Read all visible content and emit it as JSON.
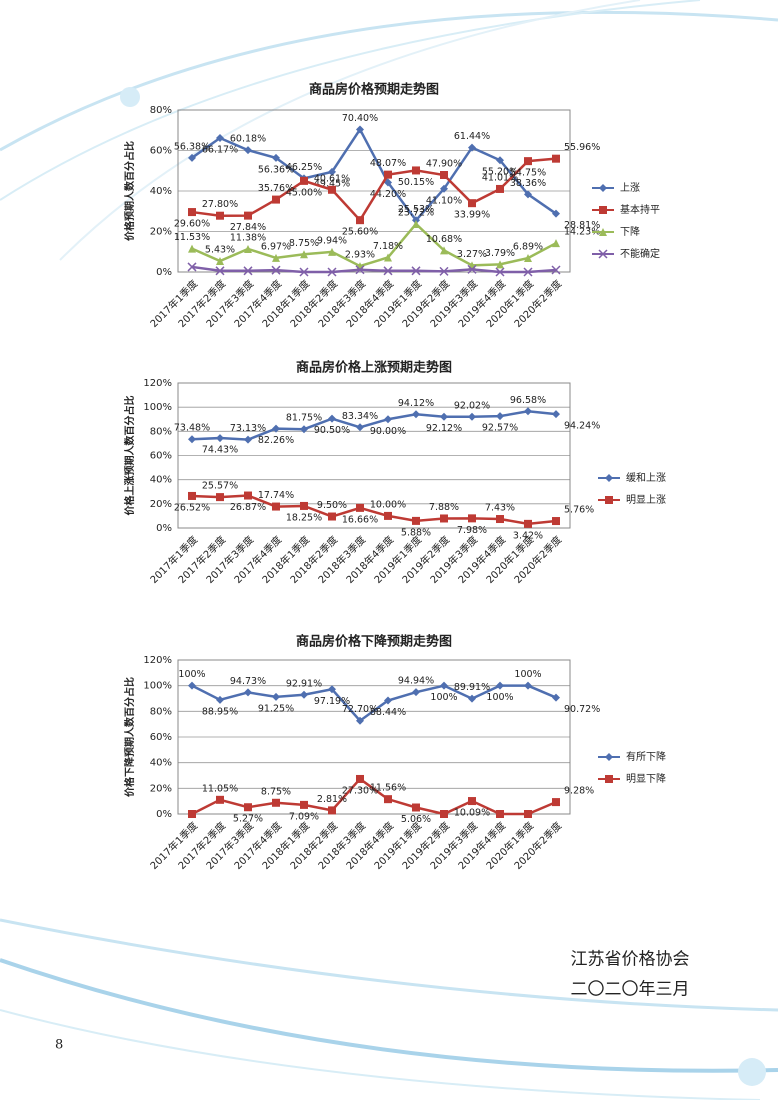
{
  "chart_data": [
    {
      "type": "line",
      "title": "商品房价格预期走势图",
      "y_label": "价格预期人数百分占比",
      "categories": [
        "2017年1季度",
        "2017年2季度",
        "2017年3季度",
        "2017年4季度",
        "2018年1季度",
        "2018年2季度",
        "2018年3季度",
        "2018年4季度",
        "2019年1季度",
        "2019年2季度",
        "2019年3季度",
        "2019年4季度",
        "2020年1季度",
        "2020年2季度"
      ],
      "ylim": [
        0,
        80
      ],
      "yticks": [
        {
          "value": 0,
          "label": "0%"
        },
        {
          "value": 20,
          "label": "20%"
        },
        {
          "value": 40,
          "label": "40%"
        },
        {
          "value": 60,
          "label": "60%"
        },
        {
          "value": 80,
          "label": "80%"
        }
      ],
      "grid": true,
      "legend": "right",
      "series": [
        {
          "name": "上涨",
          "color": "#4f6fb0",
          "marker": "diamond",
          "values": [
            56.38,
            66.17,
            60.18,
            56.36,
            46.25,
            49.45,
            70.4,
            44.2,
            25.53,
            41.1,
            61.44,
            55.2,
            38.36,
            28.81
          ],
          "value_labels": [
            "56.38%",
            "66.17%",
            "60.18%",
            "56.36%",
            "46.25%",
            "49.45%",
            "70.40%",
            "44.20%",
            "25.53%",
            "41.10%",
            "61.44%",
            "55.20%",
            "38.36%",
            "28.81%"
          ]
        },
        {
          "name": "基本持平",
          "color": "#be3a34",
          "marker": "square",
          "values": [
            29.6,
            27.8,
            27.84,
            35.76,
            45.0,
            40.61,
            25.6,
            48.07,
            50.15,
            47.9,
            33.99,
            41.01,
            54.75,
            55.96
          ],
          "value_labels": [
            "29.60%",
            "27.80%",
            "27.84%",
            "35.76%",
            "45.00%",
            "40.61%",
            "25.60%",
            "48.07%",
            "50.15%",
            "47.90%",
            "33.99%",
            "41.01%",
            "54.75%",
            "55.96%"
          ]
        },
        {
          "name": "下降",
          "color": "#9bbb59",
          "marker": "triangle",
          "values": [
            11.53,
            5.43,
            11.38,
            6.97,
            8.75,
            9.94,
            2.93,
            7.18,
            23.72,
            10.68,
            3.27,
            3.79,
            6.89,
            14.23
          ],
          "value_labels": [
            "11.53%",
            "5.43%",
            "11.38%",
            "6.97%",
            "8.75%",
            "9.94%",
            "2.93%",
            "7.18%",
            "23.72%",
            "10.68%",
            "3.27%",
            "3.79%",
            "6.89%",
            "14.23%"
          ]
        },
        {
          "name": "不能确定",
          "color": "#7f5fa8",
          "marker": "x",
          "values": [
            2.5,
            0.6,
            0.6,
            0.9,
            0,
            0,
            1.1,
            0.6,
            0.6,
            0.3,
            1.3,
            0,
            0,
            1.0
          ]
        }
      ]
    },
    {
      "type": "line",
      "title": "商品房价格上涨预期走势图",
      "y_label": "价格上涨预期人数百分占比",
      "categories": [
        "2017年1季度",
        "2017年2季度",
        "2017年3季度",
        "2017年4季度",
        "2018年1季度",
        "2018年2季度",
        "2018年3季度",
        "2018年4季度",
        "2019年1季度",
        "2019年2季度",
        "2019年3季度",
        "2019年4季度",
        "2020年1季度",
        "2020年2季度"
      ],
      "ylim": [
        0,
        120
      ],
      "yticks": [
        {
          "value": 0,
          "label": "0%"
        },
        {
          "value": 20,
          "label": "20%"
        },
        {
          "value": 40,
          "label": "40%"
        },
        {
          "value": 60,
          "label": "60%"
        },
        {
          "value": 80,
          "label": "80%"
        },
        {
          "value": 100,
          "label": "100%"
        },
        {
          "value": 120,
          "label": "120%"
        }
      ],
      "grid": true,
      "legend": "right",
      "series": [
        {
          "name": "缓和上涨",
          "color": "#4f6fb0",
          "marker": "diamond",
          "values": [
            73.48,
            74.43,
            73.13,
            82.26,
            81.75,
            90.5,
            83.34,
            90.0,
            94.12,
            92.12,
            92.02,
            92.57,
            96.58,
            94.24
          ],
          "value_labels": [
            "73.48%",
            "74.43%",
            "73.13%",
            "82.26%",
            "81.75%",
            "90.50%",
            "83.34%",
            "90.00%",
            "94.12%",
            "92.12%",
            "92.02%",
            "92.57%",
            "96.58%",
            "94.24%"
          ]
        },
        {
          "name": "明显上涨",
          "color": "#be3a34",
          "marker": "square",
          "values": [
            26.52,
            25.57,
            26.87,
            17.74,
            18.25,
            9.5,
            16.66,
            10.0,
            5.88,
            7.88,
            7.98,
            7.43,
            3.42,
            5.76
          ],
          "value_labels": [
            "26.52%",
            "25.57%",
            "26.87%",
            "17.74%",
            "18.25%",
            "9.50%",
            "16.66%",
            "10.00%",
            "5.88%",
            "7.88%",
            "7.98%",
            "7.43%",
            "3.42%",
            "5.76%"
          ]
        }
      ]
    },
    {
      "type": "line",
      "title": "商品房价格下降预期走势图",
      "y_label": "价格下降预期人数百分占比",
      "categories": [
        "2017年1季度",
        "2017年2季度",
        "2017年3季度",
        "2017年4季度",
        "2018年1季度",
        "2018年2季度",
        "2018年3季度",
        "2018年4季度",
        "2019年1季度",
        "2019年2季度",
        "2019年3季度",
        "2019年4季度",
        "2020年1季度",
        "2020年2季度"
      ],
      "ylim": [
        0,
        120
      ],
      "yticks": [
        {
          "value": 0,
          "label": "0%"
        },
        {
          "value": 20,
          "label": "20%"
        },
        {
          "value": 40,
          "label": "40%"
        },
        {
          "value": 60,
          "label": "60%"
        },
        {
          "value": 80,
          "label": "80%"
        },
        {
          "value": 100,
          "label": "100%"
        },
        {
          "value": 120,
          "label": "120%"
        }
      ],
      "grid": true,
      "legend": "right",
      "series": [
        {
          "name": "有所下降",
          "color": "#4f6fb0",
          "marker": "diamond",
          "values": [
            100,
            88.95,
            94.73,
            91.25,
            92.91,
            97.19,
            72.7,
            88.44,
            94.94,
            100,
            89.91,
            100,
            100,
            90.72
          ],
          "value_labels": [
            "100%",
            "88.95%",
            "94.73%",
            "91.25%",
            "92.91%",
            "97.19%",
            "72.70%",
            "88.44%",
            "94.94%",
            "100%",
            "89.91%",
            "100%",
            "100%",
            "90.72%"
          ]
        },
        {
          "name": "明显下降",
          "color": "#be3a34",
          "marker": "square",
          "values": [
            0,
            11.05,
            5.27,
            8.75,
            7.09,
            2.81,
            27.3,
            11.56,
            5.06,
            0,
            10.09,
            0,
            0,
            9.28
          ],
          "value_labels": [
            null,
            "11.05%",
            "5.27%",
            "8.75%",
            "7.09%",
            "2.81%",
            "27.30%",
            "11.56%",
            "5.06%",
            null,
            "10.09%",
            null,
            null,
            "9.28%"
          ]
        }
      ]
    }
  ],
  "footer": {
    "organization": "江苏省价格协会",
    "date": "二〇二〇年三月",
    "page_number": "8"
  }
}
